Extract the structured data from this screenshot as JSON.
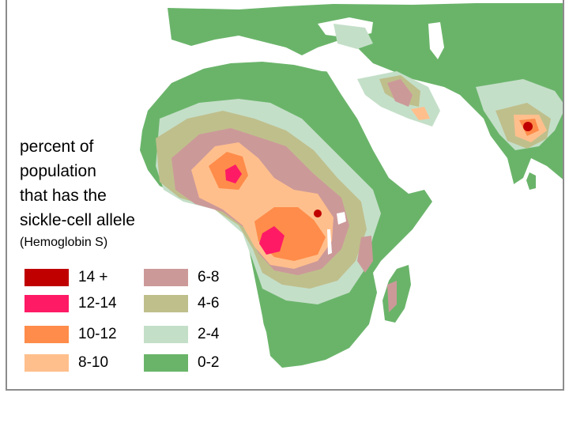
{
  "caption": {
    "lines": [
      "percent of",
      "population",
      "that has the",
      "sickle-cell allele"
    ],
    "sub": "(Hemoglobin S)"
  },
  "legend": [
    {
      "label": "14 +",
      "color": "#c00000"
    },
    {
      "label": "12-14",
      "color": "#ff1a66"
    },
    {
      "label": "10-12",
      "color": "#ff8c4a"
    },
    {
      "label": "8-10",
      "color": "#ffbf8c"
    },
    {
      "label": "6-8",
      "color": "#cc9999"
    },
    {
      "label": "4-6",
      "color": "#bfbf8c"
    },
    {
      "label": "2-4",
      "color": "#c4dfc8"
    },
    {
      "label": "0-2",
      "color": "#6ab46a"
    }
  ],
  "colors": {
    "land": "#6ab46a",
    "water": "#ffffff",
    "frame": "#8c8c8c"
  }
}
